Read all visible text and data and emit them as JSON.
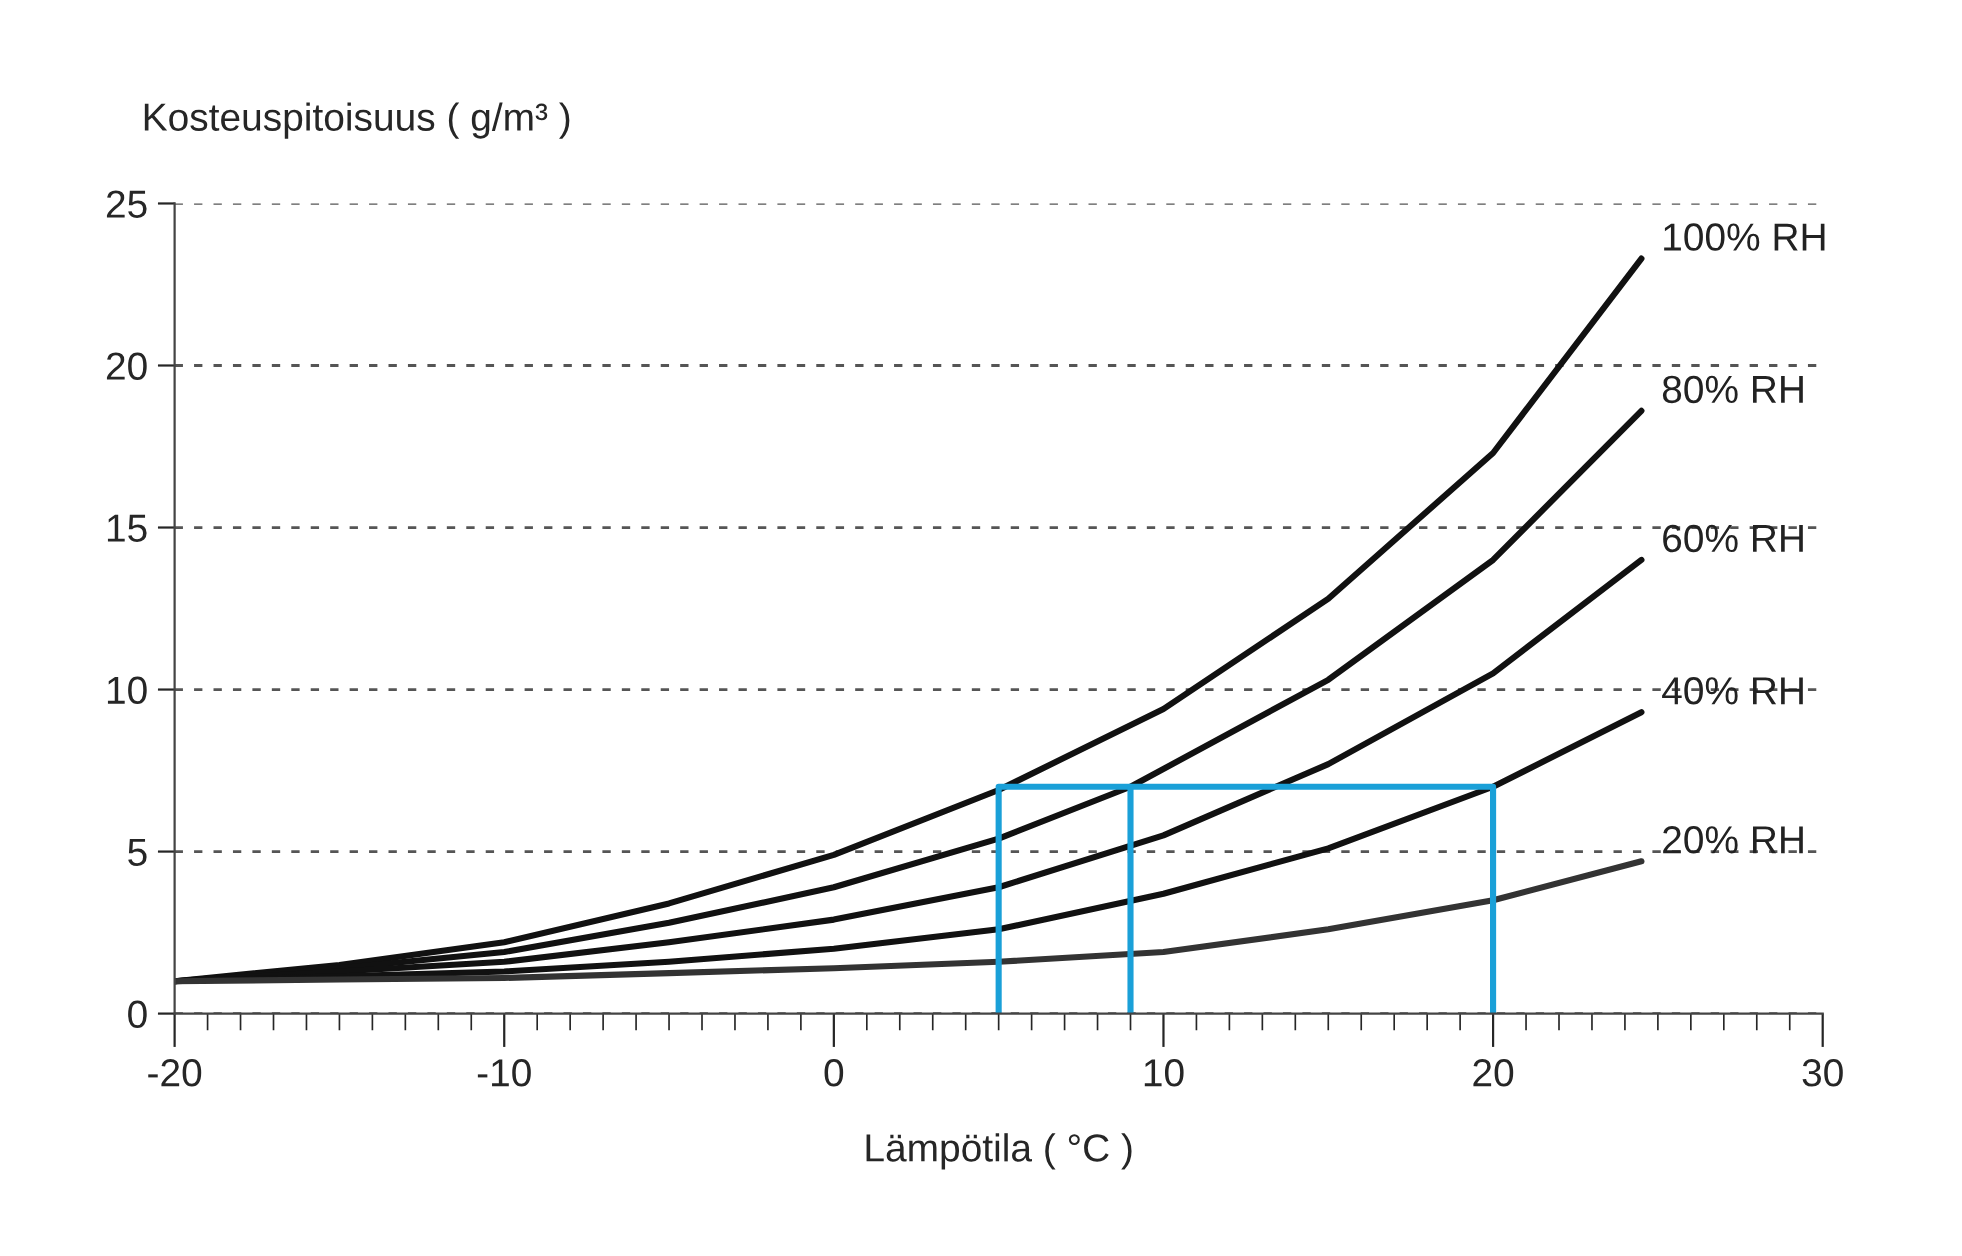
{
  "chart_data": {
    "type": "line",
    "xlabel": "Lämpötila ( °C )",
    "ylabel": "Kosteuspitoisuus ( g/m³ )",
    "xlim": [
      -20,
      30
    ],
    "xticks": [
      -20,
      -10,
      0,
      10,
      20,
      30
    ],
    "ylim": [
      0,
      25
    ],
    "yticks": [
      0,
      5,
      10,
      15,
      20,
      25
    ],
    "grid": "y",
    "legend": false,
    "marker": "none",
    "line_style": "solid",
    "series": [
      {
        "name": "100% RH",
        "color": "#111111",
        "x": [
          -20,
          -15,
          -10,
          -5,
          0,
          5,
          10,
          15,
          20,
          24.5
        ],
        "values": [
          1.0,
          1.5,
          2.2,
          3.4,
          4.9,
          6.9,
          9.4,
          12.8,
          17.3,
          23.3
        ]
      },
      {
        "name": "80% RH",
        "color": "#111111",
        "x": [
          -20,
          -15,
          -10,
          -5,
          0,
          5,
          9,
          15,
          20,
          24.5
        ],
        "values": [
          1.0,
          1.4,
          1.9,
          2.8,
          3.9,
          5.4,
          7.0,
          10.3,
          14.0,
          18.6
        ]
      },
      {
        "name": "60% RH",
        "color": "#111111",
        "x": [
          -20,
          -15,
          -10,
          -5,
          0,
          5,
          10,
          15,
          20,
          24.5
        ],
        "values": [
          1.0,
          1.3,
          1.6,
          2.2,
          2.9,
          3.9,
          5.5,
          7.7,
          10.5,
          14.0
        ]
      },
      {
        "name": "40% RH",
        "color": "#111111",
        "x": [
          -20,
          -15,
          -10,
          -5,
          0,
          5,
          10,
          15,
          20,
          24.5
        ],
        "values": [
          1.0,
          1.15,
          1.3,
          1.6,
          2.0,
          2.6,
          3.7,
          5.1,
          7.0,
          9.3
        ]
      },
      {
        "name": "20% RH",
        "color": "#333333",
        "x": [
          -20,
          -15,
          -10,
          -5,
          0,
          5,
          10,
          15,
          20,
          24.5
        ],
        "values": [
          1.0,
          1.05,
          1.1,
          1.25,
          1.4,
          1.6,
          1.9,
          2.6,
          3.5,
          4.7
        ]
      },
      {
        "color": "#1aa0d8",
        "x": [
          5,
          5,
          20,
          20
        ],
        "values": [
          0,
          7,
          7,
          0
        ]
      },
      {
        "color": "#1aa0d8",
        "x": [
          9,
          9
        ],
        "values": [
          0,
          7
        ]
      }
    ]
  }
}
